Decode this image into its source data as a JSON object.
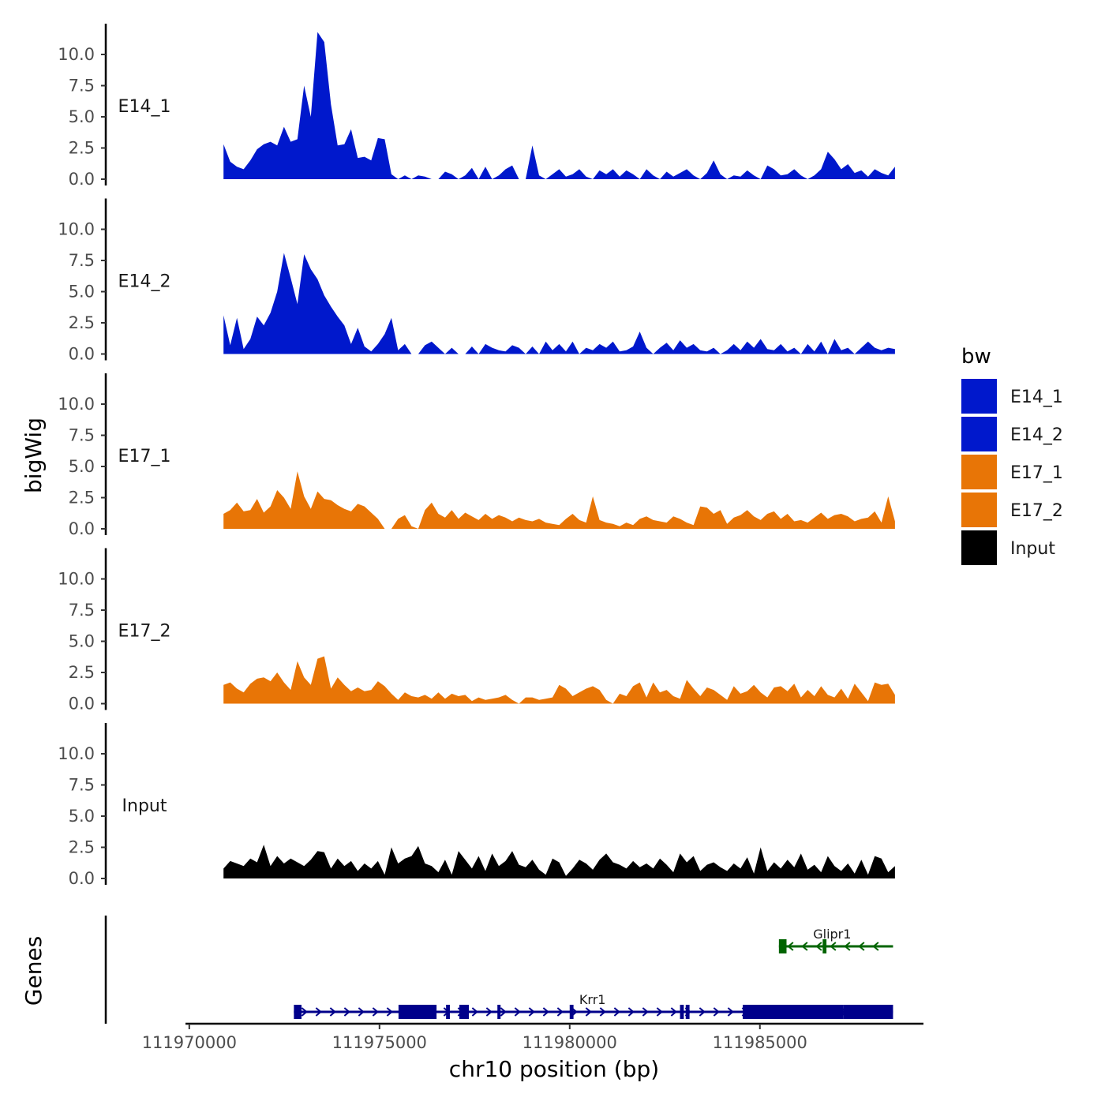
{
  "chart_data": {
    "type": "area",
    "ylabel": "bigWig",
    "xlabel": "chr10 position (bp)",
    "genes_label": "Genes",
    "xlim": [
      111969900,
      111989300
    ],
    "data_range": [
      111970900,
      111988550
    ],
    "ylim": [
      0,
      12.5
    ],
    "yticks": [
      0,
      2.5,
      5,
      7.5,
      10
    ],
    "ytick_labels": [
      "0.0",
      "2.5",
      "5.0",
      "7.5",
      "10.0"
    ],
    "xticks": [
      111970000,
      111975000,
      111980000,
      111985000
    ],
    "xtick_labels": [
      "111970000",
      "111975000",
      "111980000",
      "111985000"
    ],
    "legend": {
      "title": "bw",
      "entries": [
        {
          "label": "E14_1",
          "color": "#0018CC"
        },
        {
          "label": "E14_2",
          "color": "#0018CC"
        },
        {
          "label": "E17_1",
          "color": "#E87506"
        },
        {
          "label": "E17_2",
          "color": "#E87506"
        },
        {
          "label": "Input",
          "color": "#000000"
        }
      ]
    },
    "series": [
      {
        "name": "E14_1",
        "color": "#0018CC",
        "values": [
          2.8,
          1.4,
          1.0,
          0.8,
          1.5,
          2.4,
          2.8,
          3.0,
          2.7,
          4.2,
          3.0,
          3.2,
          7.5,
          5.0,
          11.8,
          11.0,
          6.0,
          2.7,
          2.8,
          4.0,
          1.7,
          1.8,
          1.5,
          3.3,
          3.2,
          0.4,
          0,
          0.3,
          0,
          0.3,
          0.2,
          0,
          0,
          0.6,
          0.4,
          0,
          0.3,
          0.9,
          0,
          1.0,
          0,
          0.3,
          0.8,
          1.1,
          0,
          0,
          2.7,
          0.3,
          0,
          0.4,
          0.8,
          0.2,
          0.4,
          0.8,
          0.2,
          0,
          0.7,
          0.4,
          0.8,
          0.2,
          0.7,
          0.4,
          0,
          0.8,
          0.3,
          0,
          0.6,
          0.2,
          0.5,
          0.8,
          0.3,
          0,
          0.5,
          1.5,
          0.4,
          0,
          0.3,
          0.2,
          0.7,
          0.3,
          0,
          1.1,
          0.8,
          0.3,
          0.4,
          0.8,
          0.3,
          0,
          0.3,
          0.8,
          2.2,
          1.6,
          0.8,
          1.2,
          0.5,
          0.7,
          0.2,
          0.8,
          0.5,
          0.3,
          1.0
        ]
      },
      {
        "name": "E14_2",
        "color": "#0018CC",
        "values": [
          3.1,
          0.7,
          2.9,
          0.4,
          1.2,
          3.0,
          2.3,
          3.3,
          5.0,
          8.1,
          6.1,
          4.0,
          8.0,
          6.8,
          6.0,
          4.7,
          3.8,
          3.0,
          2.3,
          0.8,
          2.1,
          0.6,
          0.2,
          0.8,
          1.6,
          2.9,
          0.3,
          0.8,
          0,
          0,
          0.7,
          1.0,
          0.5,
          0,
          0.5,
          0,
          0,
          0.6,
          0,
          0.8,
          0.5,
          0.3,
          0.2,
          0.7,
          0.5,
          0,
          0.6,
          0,
          1.0,
          0.3,
          0.8,
          0.2,
          1.0,
          0,
          0.5,
          0.3,
          0.8,
          0.5,
          1.0,
          0.2,
          0.3,
          0.6,
          1.8,
          0.5,
          0,
          0.5,
          0.9,
          0.3,
          1.1,
          0.5,
          0.8,
          0.3,
          0.2,
          0.5,
          0,
          0.3,
          0.8,
          0.3,
          1.0,
          0.5,
          1.2,
          0.4,
          0.3,
          0.8,
          0.2,
          0.5,
          0,
          0.8,
          0.2,
          1.0,
          0,
          1.2,
          0.3,
          0.5,
          0,
          0.5,
          1.0,
          0.5,
          0.3,
          0.5,
          0.4
        ]
      },
      {
        "name": "E17_1",
        "color": "#E87506",
        "values": [
          1.2,
          1.5,
          2.1,
          1.4,
          1.5,
          2.4,
          1.3,
          1.8,
          3.1,
          2.5,
          1.6,
          4.6,
          2.6,
          1.6,
          3.0,
          2.4,
          2.3,
          1.9,
          1.6,
          1.4,
          2.0,
          1.8,
          1.3,
          0.8,
          0,
          0,
          0.8,
          1.1,
          0.2,
          0,
          1.5,
          2.1,
          1.2,
          0.9,
          1.5,
          0.8,
          1.3,
          1.0,
          0.7,
          1.2,
          0.8,
          1.1,
          0.9,
          0.6,
          0.9,
          0.7,
          0.6,
          0.8,
          0.5,
          0.4,
          0.3,
          0.8,
          1.2,
          0.7,
          0.5,
          2.6,
          0.7,
          0.5,
          0.4,
          0.2,
          0.5,
          0.3,
          0.8,
          1.0,
          0.7,
          0.6,
          0.5,
          1.0,
          0.8,
          0.5,
          0.3,
          1.8,
          1.7,
          1.2,
          1.5,
          0.4,
          0.9,
          1.1,
          1.5,
          1.0,
          0.7,
          1.2,
          1.4,
          0.8,
          1.2,
          0.6,
          0.7,
          0.5,
          0.9,
          1.3,
          0.8,
          1.1,
          1.2,
          1.0,
          0.6,
          0.8,
          0.9,
          1.4,
          0.5,
          2.6,
          0.6
        ]
      },
      {
        "name": "E17_2",
        "color": "#E87506",
        "values": [
          1.5,
          1.7,
          1.2,
          0.9,
          1.6,
          2.0,
          2.1,
          1.8,
          2.5,
          1.7,
          1.1,
          3.4,
          2.1,
          1.5,
          3.6,
          3.8,
          1.2,
          2.1,
          1.5,
          1.0,
          1.3,
          1.0,
          1.1,
          1.8,
          1.4,
          0.8,
          0.3,
          0.9,
          0.6,
          0.5,
          0.7,
          0.4,
          0.9,
          0.4,
          0.8,
          0.6,
          0.7,
          0.2,
          0.5,
          0.3,
          0.4,
          0.5,
          0.7,
          0.3,
          0,
          0.5,
          0.5,
          0.3,
          0.4,
          0.5,
          1.5,
          1.2,
          0.6,
          0.9,
          1.2,
          1.4,
          1.1,
          0.3,
          0,
          0.8,
          0.6,
          1.4,
          1.7,
          0.5,
          1.7,
          0.9,
          1.1,
          0.6,
          0.4,
          1.9,
          1.2,
          0.6,
          1.3,
          1.1,
          0.7,
          0.3,
          1.4,
          0.8,
          1.0,
          1.5,
          0.9,
          0.5,
          1.3,
          1.4,
          1.0,
          1.6,
          0.5,
          1.1,
          0.6,
          1.4,
          0.7,
          0.5,
          1.2,
          0.4,
          1.6,
          0.9,
          0.2,
          1.7,
          1.5,
          1.6,
          0.7
        ]
      },
      {
        "name": "Input",
        "color": "#000000",
        "values": [
          0.8,
          1.4,
          1.2,
          1.0,
          1.6,
          1.3,
          2.7,
          1.0,
          1.8,
          1.2,
          1.6,
          1.3,
          1.0,
          1.5,
          2.2,
          2.1,
          0.8,
          1.6,
          1.0,
          1.4,
          0.6,
          1.2,
          0.8,
          1.4,
          0.3,
          2.5,
          1.2,
          1.6,
          1.8,
          2.6,
          1.2,
          1.0,
          0.5,
          1.5,
          0.3,
          2.2,
          1.5,
          0.8,
          1.8,
          0.6,
          2.0,
          1.0,
          1.4,
          2.2,
          1.1,
          0.9,
          1.5,
          0.7,
          0.3,
          1.6,
          1.3,
          0.2,
          0.8,
          1.5,
          1.2,
          0.7,
          1.5,
          2.0,
          1.3,
          1.1,
          0.8,
          1.4,
          0.9,
          1.2,
          0.8,
          1.6,
          1.1,
          0.5,
          2.0,
          1.3,
          1.8,
          0.6,
          1.1,
          1.3,
          0.9,
          0.6,
          1.2,
          0.8,
          1.7,
          0.4,
          2.5,
          0.6,
          1.3,
          0.8,
          1.5,
          0.9,
          2.0,
          0.7,
          1.1,
          0.5,
          1.8,
          1.0,
          0.6,
          1.2,
          0.4,
          1.5,
          0.3,
          1.8,
          1.6,
          0.5,
          1.0
        ]
      }
    ],
    "genes": [
      {
        "name": "Krr1",
        "color": "#00008B",
        "strand": "+",
        "start": 111972750,
        "end": 111988500,
        "exons": [
          [
            111972750,
            111972950
          ],
          [
            111975500,
            111976500
          ],
          [
            111976750,
            111976850
          ],
          [
            111977100,
            111977350
          ],
          [
            111978100,
            111978150
          ],
          [
            111980000,
            111980100
          ],
          [
            111982900,
            111983000
          ],
          [
            111983050,
            111983150
          ],
          [
            111984550,
            111987200
          ],
          [
            111987200,
            111988500
          ]
        ],
        "label_position": 111980600
      },
      {
        "name": "Glipr1",
        "color": "#006400",
        "strand": "-",
        "start": 111985500,
        "end": 111988500,
        "exons": [
          [
            111985500,
            111985700
          ],
          [
            111986650,
            111986750
          ]
        ],
        "label_position": 111986900
      }
    ]
  }
}
